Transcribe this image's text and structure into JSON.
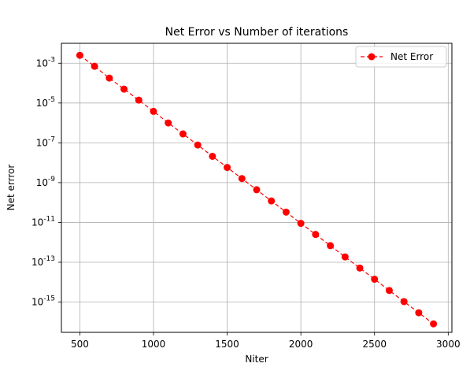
{
  "chart_data": {
    "type": "line",
    "title": "Net Error vs Number of iterations",
    "xlabel": "Niter",
    "ylabel": "Net errror",
    "xlim": [
      375,
      3025
    ],
    "xticks": [
      500,
      1000,
      1500,
      2000,
      2500,
      3000
    ],
    "ylog": true,
    "ylim": [
      3e-17,
      0.01
    ],
    "yticks": [
      1e-15,
      1e-13,
      1e-11,
      1e-09,
      1e-07,
      1e-05,
      0.001
    ],
    "ytick_exponents": [
      "-15",
      "-13",
      "-11",
      "-9",
      "-7",
      "-5",
      "-3"
    ],
    "grid": true,
    "legend_position": "top-right",
    "series": [
      {
        "name": "Net Error",
        "color": "#ff0000",
        "linestyle": "dashed",
        "marker": "circle",
        "x": [
          500,
          600,
          700,
          800,
          900,
          1000,
          1100,
          1200,
          1300,
          1400,
          1500,
          1600,
          1700,
          1800,
          1900,
          2000,
          2100,
          2200,
          2300,
          2400,
          2500,
          2600,
          2700,
          2800,
          2900
        ],
        "y": [
          0.0025,
          0.0007,
          0.00018,
          5e-05,
          1.4e-05,
          3.8e-06,
          1e-06,
          2.8e-07,
          7.8e-08,
          2.1e-08,
          5.8e-09,
          1.6e-09,
          4.4e-10,
          1.2e-10,
          3.3e-11,
          9e-12,
          2.5e-12,
          6.8e-13,
          1.85e-13,
          5.1e-14,
          1.4e-14,
          3.8e-15,
          1.05e-15,
          2.9e-16,
          8e-17
        ]
      }
    ]
  }
}
